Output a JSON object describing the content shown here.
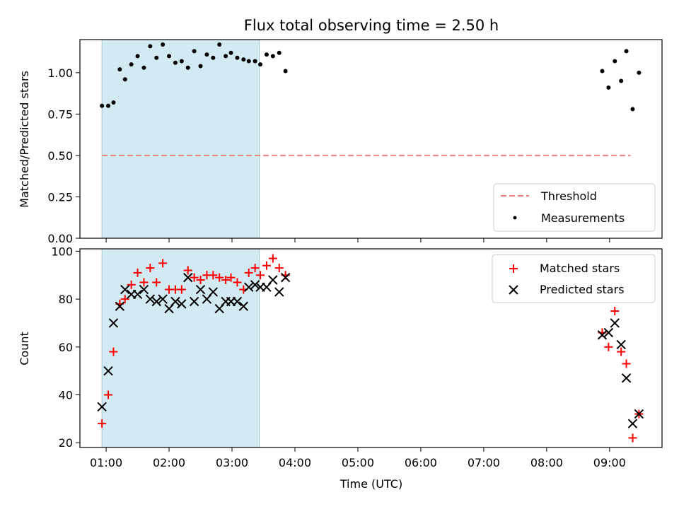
{
  "figure": {
    "title": "Flux total observing time = 2.50 h"
  },
  "chart_data": [
    {
      "type": "scatter",
      "panel": "top",
      "ylabel": "Matched/Predicted stars",
      "xlabel": "",
      "xlim": [
        "00:35",
        "09:50"
      ],
      "ylim": [
        0,
        1.2
      ],
      "yticks": [
        0.0,
        0.25,
        0.5,
        0.75,
        1.0
      ],
      "ytick_labels": [
        "0.00",
        "0.25",
        "0.50",
        "0.75",
        "1.00"
      ],
      "shaded_span": {
        "start": "00:56",
        "end": "03:26",
        "color": "#add8e6"
      },
      "grid": false,
      "legend": {
        "position": "lower-right",
        "entries": [
          "Threshold",
          "Measurements"
        ]
      },
      "threshold": {
        "name": "Threshold",
        "value": 0.5,
        "x_start": "00:56",
        "x_end": "09:20",
        "color": "#f08080",
        "style": "dashed"
      },
      "series": [
        {
          "name": "Measurements",
          "color": "#000000",
          "marker": "dot",
          "points": [
            [
              "00:56",
              0.8
            ],
            [
              "01:02",
              0.8
            ],
            [
              "01:07",
              0.82
            ],
            [
              "01:13",
              1.02
            ],
            [
              "01:18",
              0.96
            ],
            [
              "01:24",
              1.05
            ],
            [
              "01:30",
              1.1
            ],
            [
              "01:36",
              1.03
            ],
            [
              "01:42",
              1.16
            ],
            [
              "01:48",
              1.09
            ],
            [
              "01:54",
              1.17
            ],
            [
              "02:00",
              1.1
            ],
            [
              "02:06",
              1.06
            ],
            [
              "02:12",
              1.07
            ],
            [
              "02:18",
              1.03
            ],
            [
              "02:24",
              1.13
            ],
            [
              "02:30",
              1.04
            ],
            [
              "02:36",
              1.11
            ],
            [
              "02:42",
              1.09
            ],
            [
              "02:48",
              1.17
            ],
            [
              "02:54",
              1.1
            ],
            [
              "02:59",
              1.12
            ],
            [
              "03:05",
              1.09
            ],
            [
              "03:11",
              1.08
            ],
            [
              "03:16",
              1.07
            ],
            [
              "03:22",
              1.07
            ],
            [
              "03:27",
              1.05
            ],
            [
              "03:33",
              1.11
            ],
            [
              "03:39",
              1.1
            ],
            [
              "03:45",
              1.12
            ],
            [
              "03:51",
              1.01
            ],
            [
              "08:53",
              1.01
            ],
            [
              "08:59",
              0.91
            ],
            [
              "09:05",
              1.07
            ],
            [
              "09:11",
              0.95
            ],
            [
              "09:16",
              1.13
            ],
            [
              "09:22",
              0.78
            ],
            [
              "09:28",
              1.0
            ]
          ]
        }
      ]
    },
    {
      "type": "scatter",
      "panel": "bottom",
      "ylabel": "Count",
      "xlabel": "Time (UTC)",
      "xlim": [
        "00:35",
        "09:50"
      ],
      "ylim": [
        18,
        101
      ],
      "yticks": [
        20,
        40,
        60,
        80,
        100
      ],
      "ytick_labels": [
        "20",
        "40",
        "60",
        "80",
        "100"
      ],
      "xticks": [
        "01:00",
        "02:00",
        "03:00",
        "04:00",
        "05:00",
        "06:00",
        "07:00",
        "08:00",
        "09:00"
      ],
      "xtick_labels": [
        "01:00",
        "02:00",
        "03:00",
        "04:00",
        "05:00",
        "06:00",
        "07:00",
        "08:00",
        "09:00"
      ],
      "shaded_span": {
        "start": "00:56",
        "end": "03:26",
        "color": "#add8e6"
      },
      "grid": false,
      "legend": {
        "position": "upper-right",
        "entries": [
          "Matched stars",
          "Predicted stars"
        ]
      },
      "series": [
        {
          "name": "Matched stars",
          "color": "#ff0000",
          "marker": "plus",
          "points": [
            [
              "00:56",
              28
            ],
            [
              "01:02",
              40
            ],
            [
              "01:07",
              58
            ],
            [
              "01:13",
              78
            ],
            [
              "01:18",
              80
            ],
            [
              "01:24",
              86
            ],
            [
              "01:30",
              91
            ],
            [
              "01:36",
              87
            ],
            [
              "01:42",
              93
            ],
            [
              "01:48",
              87
            ],
            [
              "01:54",
              95
            ],
            [
              "02:00",
              84
            ],
            [
              "02:06",
              84
            ],
            [
              "02:12",
              84
            ],
            [
              "02:18",
              92
            ],
            [
              "02:24",
              89
            ],
            [
              "02:30",
              88
            ],
            [
              "02:36",
              90
            ],
            [
              "02:42",
              90
            ],
            [
              "02:48",
              89
            ],
            [
              "02:54",
              88
            ],
            [
              "02:59",
              89
            ],
            [
              "03:05",
              87
            ],
            [
              "03:11",
              84
            ],
            [
              "03:16",
              91
            ],
            [
              "03:22",
              93
            ],
            [
              "03:27",
              90
            ],
            [
              "03:33",
              94
            ],
            [
              "03:39",
              97
            ],
            [
              "03:45",
              93
            ],
            [
              "03:51",
              90
            ],
            [
              "08:53",
              66
            ],
            [
              "08:59",
              60
            ],
            [
              "09:05",
              75
            ],
            [
              "09:11",
              58
            ],
            [
              "09:16",
              53
            ],
            [
              "09:22",
              22
            ],
            [
              "09:28",
              32
            ]
          ]
        },
        {
          "name": "Predicted stars",
          "color": "#000000",
          "marker": "x",
          "points": [
            [
              "00:56",
              35
            ],
            [
              "01:02",
              50
            ],
            [
              "01:07",
              70
            ],
            [
              "01:13",
              77
            ],
            [
              "01:18",
              84
            ],
            [
              "01:24",
              82
            ],
            [
              "01:30",
              82
            ],
            [
              "01:36",
              84
            ],
            [
              "01:42",
              80
            ],
            [
              "01:48",
              79
            ],
            [
              "01:54",
              80
            ],
            [
              "02:00",
              76
            ],
            [
              "02:06",
              79
            ],
            [
              "02:12",
              78
            ],
            [
              "02:18",
              89
            ],
            [
              "02:24",
              79
            ],
            [
              "02:30",
              84
            ],
            [
              "02:36",
              80
            ],
            [
              "02:42",
              83
            ],
            [
              "02:48",
              76
            ],
            [
              "02:54",
              79
            ],
            [
              "02:59",
              79
            ],
            [
              "03:05",
              79
            ],
            [
              "03:11",
              77
            ],
            [
              "03:16",
              85
            ],
            [
              "03:22",
              86
            ],
            [
              "03:27",
              85
            ],
            [
              "03:33",
              85
            ],
            [
              "03:39",
              88
            ],
            [
              "03:45",
              83
            ],
            [
              "03:51",
              89
            ],
            [
              "08:53",
              65
            ],
            [
              "08:59",
              66
            ],
            [
              "09:05",
              70
            ],
            [
              "09:11",
              61
            ],
            [
              "09:16",
              47
            ],
            [
              "09:22",
              28
            ],
            [
              "09:28",
              32
            ]
          ]
        }
      ]
    }
  ]
}
